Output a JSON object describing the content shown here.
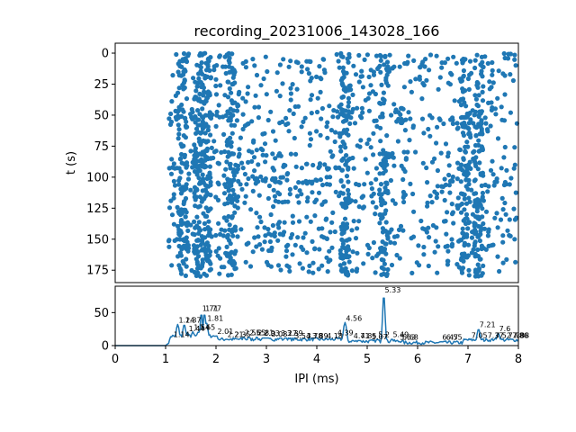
{
  "title": "recording_20231006_143028_166",
  "chart_data": [
    {
      "type": "scatter",
      "name": "raster",
      "ylabel": "t (s)",
      "xlim": [
        0,
        8
      ],
      "ylim": [
        185,
        -8
      ],
      "y_inverted": true,
      "yticks": [
        0,
        25,
        50,
        75,
        100,
        125,
        150,
        175
      ],
      "color": "#1f77b4",
      "x_start": 1.05,
      "x_end": 8.0,
      "t_max": 180,
      "approx_point_count": 1900,
      "dense_columns_ms": [
        1.33,
        1.65,
        1.81,
        2.3,
        4.56,
        5.33,
        6.95,
        7.21
      ]
    },
    {
      "type": "line",
      "name": "histogram",
      "xlabel": "IPI (ms)",
      "xlim": [
        0,
        8
      ],
      "ylim": [
        0,
        90
      ],
      "xticks": [
        0,
        1,
        2,
        3,
        4,
        5,
        6,
        7,
        8
      ],
      "yticks": [
        0,
        50
      ],
      "color": "#1f77b4",
      "peaks": [
        {
          "x": 1.14,
          "y": 10,
          "label": "1.14"
        },
        {
          "x": 1.24,
          "y": 32,
          "label": "1.24"
        },
        {
          "x": 1.37,
          "y": 32,
          "label": "1.37"
        },
        {
          "x": 1.44,
          "y": 19,
          "label": "1.44"
        },
        {
          "x": 1.54,
          "y": 21,
          "label": "1.54"
        },
        {
          "x": 1.65,
          "y": 21,
          "label": "1.65"
        },
        {
          "x": 1.71,
          "y": 50,
          "label": "1.71"
        },
        {
          "x": 1.77,
          "y": 50,
          "label": "1.77"
        },
        {
          "x": 1.81,
          "y": 35,
          "label": "1.81"
        },
        {
          "x": 2.01,
          "y": 15,
          "label": "2.01"
        },
        {
          "x": 2.21,
          "y": 10,
          "label": "2.21"
        },
        {
          "x": 2.35,
          "y": 10,
          "label": "2.35"
        },
        {
          "x": 2.55,
          "y": 13,
          "label": "2.55"
        },
        {
          "x": 2.65,
          "y": 13,
          "label": "2.65"
        },
        {
          "x": 2.81,
          "y": 13,
          "label": "2.81"
        },
        {
          "x": 2.93,
          "y": 12,
          "label": "2.93"
        },
        {
          "x": 3.08,
          "y": 11,
          "label": "3.08"
        },
        {
          "x": 3.27,
          "y": 12,
          "label": "3.27"
        },
        {
          "x": 3.39,
          "y": 12,
          "label": "3.39"
        },
        {
          "x": 3.54,
          "y": 8,
          "label": "3.54"
        },
        {
          "x": 3.78,
          "y": 8,
          "label": "3.78"
        },
        {
          "x": 3.89,
          "y": 8,
          "label": "3.89"
        },
        {
          "x": 4.18,
          "y": 8,
          "label": "4.18"
        },
        {
          "x": 4.39,
          "y": 13,
          "label": "4.39"
        },
        {
          "x": 4.56,
          "y": 35,
          "label": "4.56"
        },
        {
          "x": 4.71,
          "y": 8,
          "label": "4.71"
        },
        {
          "x": 4.85,
          "y": 8,
          "label": "4.85"
        },
        {
          "x": 5.07,
          "y": 7,
          "label": "5.07"
        },
        {
          "x": 5.2,
          "y": 10,
          "label": "5.2"
        },
        {
          "x": 5.33,
          "y": 78,
          "label": "5.33"
        },
        {
          "x": 5.49,
          "y": 10,
          "label": "5.49"
        },
        {
          "x": 5.63,
          "y": 6,
          "label": "5.63"
        },
        {
          "x": 5.68,
          "y": 6,
          "label": "5.68"
        },
        {
          "x": 6.47,
          "y": 6,
          "label": "6.47"
        },
        {
          "x": 6.55,
          "y": 6,
          "label": "6.55"
        },
        {
          "x": 7.05,
          "y": 9,
          "label": "7.05"
        },
        {
          "x": 7.21,
          "y": 25,
          "label": "7.21"
        },
        {
          "x": 7.37,
          "y": 9,
          "label": "7.37"
        },
        {
          "x": 7.52,
          "y": 9,
          "label": "7.52"
        },
        {
          "x": 7.6,
          "y": 19,
          "label": "7.6"
        },
        {
          "x": 7.78,
          "y": 9,
          "label": "7.78"
        },
        {
          "x": 7.86,
          "y": 9,
          "label": "7.86"
        },
        {
          "x": 7.88,
          "y": 9,
          "label": "7.88"
        }
      ]
    }
  ]
}
